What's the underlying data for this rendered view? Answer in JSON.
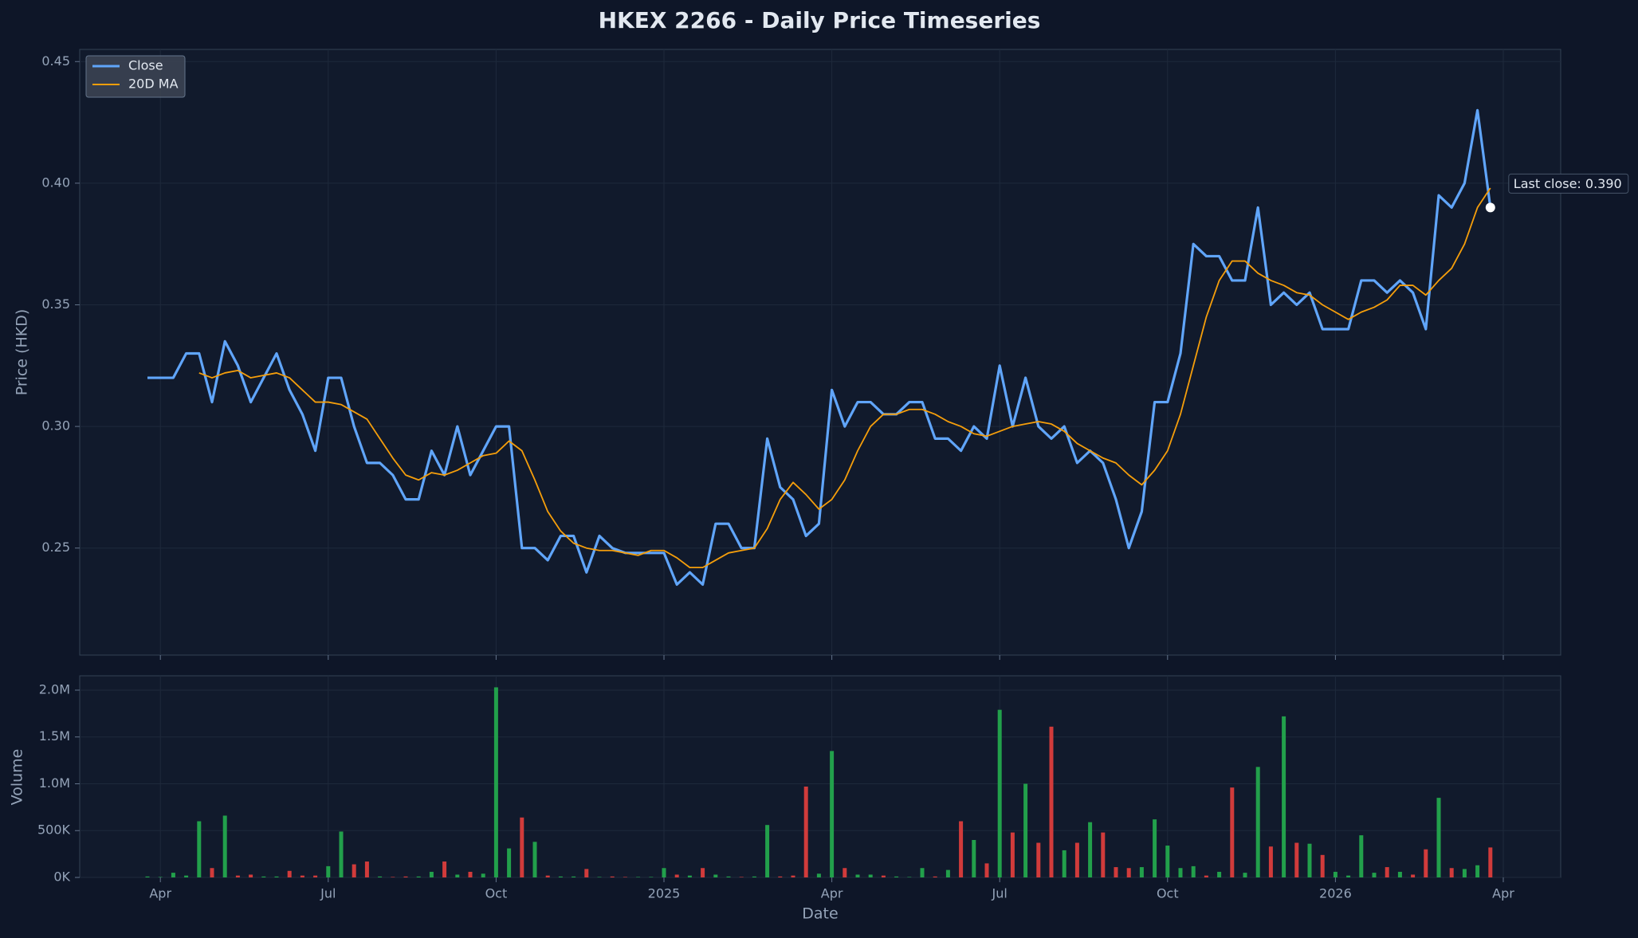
{
  "chart_data": [
    {
      "type": "line",
      "title": "HKEX 2266 - Daily Price Timeseries",
      "ylabel": "Price (HKD)",
      "ylim": [
        0.206,
        0.455
      ],
      "yticks": [
        0.25,
        {
          "value": 0.3,
          "label": "0.30"
        },
        0.35,
        {
          "value": 0.4,
          "label": "0.40"
        },
        0.45
      ],
      "grid": true,
      "legend": "upper left",
      "annotation": "Last close: 0.390",
      "series": [
        {
          "name": "Close",
          "color": "#60a5fa",
          "values": [
            0.32,
            0.32,
            0.32,
            0.33,
            0.33,
            0.31,
            0.335,
            0.325,
            0.31,
            0.32,
            0.33,
            0.315,
            0.305,
            0.29,
            0.32,
            0.32,
            0.3,
            0.285,
            0.285,
            0.28,
            0.27,
            0.27,
            0.29,
            0.28,
            0.3,
            0.28,
            0.29,
            0.3,
            0.3,
            0.25,
            0.25,
            0.245,
            0.255,
            0.255,
            0.24,
            0.255,
            0.25,
            0.248,
            0.248,
            0.248,
            0.248,
            0.235,
            0.24,
            0.235,
            0.26,
            0.26,
            0.25,
            0.25,
            0.295,
            0.275,
            0.27,
            0.255,
            0.26,
            0.315,
            0.3,
            0.31,
            0.31,
            0.305,
            0.305,
            0.31,
            0.31,
            0.295,
            0.295,
            0.29,
            0.3,
            0.295,
            0.325,
            0.3,
            0.32,
            0.3,
            0.295,
            0.3,
            0.285,
            0.29,
            0.285,
            0.27,
            0.25,
            0.265,
            0.31,
            0.31,
            0.33,
            0.375,
            0.37,
            0.37,
            0.36,
            0.36,
            0.39,
            0.35,
            0.355,
            0.35,
            0.355,
            0.34,
            0.34,
            0.34,
            0.36,
            0.36,
            0.355,
            0.36,
            0.355,
            0.34,
            0.395,
            0.39,
            0.4,
            0.43,
            0.39,
            null
          ]
        },
        {
          "name": "20D MA",
          "color": "#f59e0b",
          "values": [
            null,
            null,
            null,
            null,
            0.322,
            0.32,
            0.322,
            0.323,
            0.32,
            0.321,
            0.322,
            0.32,
            0.315,
            0.31,
            0.31,
            0.309,
            0.306,
            0.303,
            0.295,
            0.287,
            0.28,
            0.278,
            0.281,
            0.28,
            0.282,
            0.285,
            0.288,
            0.289,
            0.294,
            0.29,
            0.278,
            0.265,
            0.257,
            0.252,
            0.25,
            0.249,
            0.249,
            0.248,
            0.247,
            0.249,
            0.249,
            0.246,
            0.242,
            0.242,
            0.245,
            0.248,
            0.249,
            0.25,
            0.258,
            0.27,
            0.277,
            0.272,
            0.266,
            0.27,
            0.278,
            0.29,
            0.3,
            0.305,
            0.305,
            0.307,
            0.307,
            0.305,
            0.302,
            0.3,
            0.297,
            0.296,
            0.298,
            0.3,
            0.301,
            0.302,
            0.301,
            0.298,
            0.293,
            0.29,
            0.287,
            0.285,
            0.28,
            0.276,
            0.282,
            0.29,
            0.305,
            0.325,
            0.345,
            0.36,
            0.368,
            0.368,
            0.363,
            0.36,
            0.358,
            0.355,
            0.354,
            0.35,
            0.347,
            0.344,
            0.347,
            0.349,
            0.352,
            0.358,
            0.358,
            0.354,
            0.36,
            0.365,
            0.375,
            0.39,
            0.398,
            null
          ]
        }
      ]
    },
    {
      "type": "bar",
      "ylabel": "Volume",
      "xlabel": "Date",
      "ylim": [
        0,
        2153000
      ],
      "yticks": [
        {
          "value": 0,
          "label": "0K"
        },
        {
          "value": 500000,
          "label": "500K"
        },
        {
          "value": 1000000,
          "label": "1.0M"
        },
        {
          "value": 1500000,
          "label": "1.5M"
        },
        {
          "value": 2000000,
          "label": "2.0M"
        }
      ],
      "grid": true,
      "up_color": "#22a04b",
      "down_color": "#d13b3b",
      "categories": [
        null,
        "Apr",
        null,
        null,
        null,
        null,
        null,
        null,
        null,
        null,
        null,
        null,
        null,
        null,
        "Jul",
        null,
        null,
        null,
        null,
        null,
        null,
        null,
        null,
        null,
        null,
        null,
        null,
        "Oct",
        null,
        null,
        null,
        null,
        null,
        null,
        null,
        null,
        null,
        null,
        null,
        null,
        "2025",
        null,
        null,
        null,
        null,
        null,
        null,
        null,
        null,
        null,
        null,
        null,
        null,
        "Apr",
        null,
        null,
        null,
        null,
        null,
        null,
        null,
        null,
        null,
        null,
        null,
        null,
        "Jul",
        null,
        null,
        null,
        null,
        null,
        null,
        null,
        null,
        null,
        null,
        null,
        null,
        "Oct",
        null,
        null,
        null,
        null,
        null,
        null,
        null,
        null,
        null,
        null,
        null,
        null,
        "2026",
        null,
        null,
        null,
        null,
        null,
        null,
        null,
        null,
        null,
        null,
        null,
        null,
        "Apr"
      ],
      "values": [
        10000,
        5000,
        50000,
        20000,
        600000,
        100000,
        660000,
        20000,
        30000,
        10000,
        10000,
        70000,
        20000,
        20000,
        120000,
        490000,
        140000,
        170000,
        10000,
        5000,
        10000,
        10000,
        60000,
        170000,
        30000,
        60000,
        40000,
        2030000,
        310000,
        640000,
        380000,
        20000,
        10000,
        10000,
        90000,
        5000,
        10000,
        5000,
        5000,
        5000,
        100000,
        30000,
        20000,
        100000,
        30000,
        10000,
        5000,
        10000,
        560000,
        10000,
        20000,
        970000,
        40000,
        1350000,
        100000,
        30000,
        30000,
        20000,
        10000,
        5000,
        100000,
        10000,
        80000,
        600000,
        400000,
        150000,
        1790000,
        480000,
        1000000,
        370000,
        1610000,
        290000,
        370000,
        590000,
        480000,
        110000,
        100000,
        110000,
        620000,
        340000,
        100000,
        120000,
        20000,
        60000,
        960000,
        50000,
        1180000,
        330000,
        1720000,
        370000,
        360000,
        240000,
        60000,
        20000,
        450000,
        50000,
        110000,
        60000,
        30000,
        300000,
        850000,
        100000,
        90000,
        130000,
        320000,
        null
      ]
    }
  ]
}
